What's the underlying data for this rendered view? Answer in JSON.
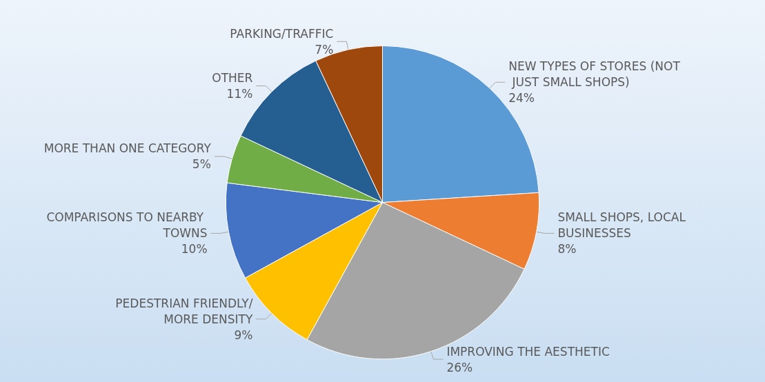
{
  "chart_data": {
    "type": "pie",
    "categories": [
      "NEW TYPES OF STORES (NOT JUST SMALL SHOPS)",
      "SMALL SHOPS, LOCAL BUSINESSES",
      "IMPROVING THE AESTHETIC",
      "PEDESTRIAN FRIENDLY/MORE DENSITY",
      "COMPARISONS TO NEARBY TOWNS",
      "MORE THAN ONE CATEGORY",
      "OTHER",
      "PARKING/TRAFFIC"
    ],
    "values": [
      24,
      8,
      26,
      9,
      10,
      5,
      11,
      7
    ],
    "colors": [
      "#5b9bd5",
      "#ed7d31",
      "#a5a5a5",
      "#ffc000",
      "#4472c4",
      "#70ad47",
      "#255e91",
      "#9e480e"
    ],
    "value_labels": [
      "24%",
      "8%",
      "26%",
      "9%",
      "10%",
      "5%",
      "11%",
      "7%"
    ],
    "legend": false
  }
}
